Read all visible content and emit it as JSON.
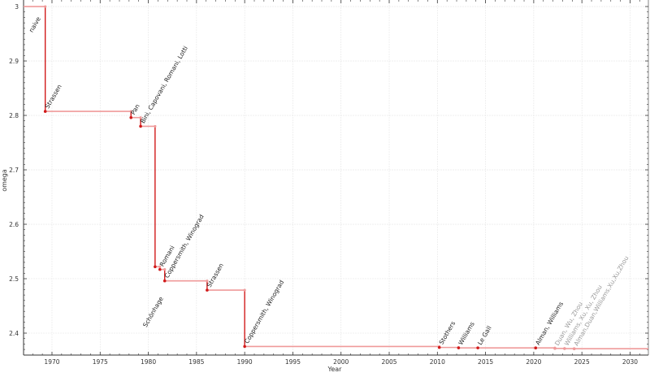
{
  "chart_data": {
    "type": "line",
    "step": true,
    "title": "",
    "xlabel": "Year",
    "ylabel": "omega",
    "xlim": [
      1967.05,
      2031.9
    ],
    "ylim": [
      2.3597,
      3.012
    ],
    "xticks": [
      1970,
      1975,
      1980,
      1985,
      1990,
      1995,
      2000,
      2005,
      2010,
      2015,
      2020,
      2025,
      2030
    ],
    "yticks": [
      2.4,
      2.5,
      2.6,
      2.7,
      2.8,
      2.9,
      3
    ],
    "grid": true,
    "colors": {
      "line": "#d11a1a",
      "line_light": "#ef9a9a",
      "label": "#222222",
      "label_light": "#999999"
    },
    "points": [
      {
        "x": 1967.05,
        "y": 3.0,
        "label": "naive"
      },
      {
        "x": 1969.3,
        "y": 2.8074,
        "label": "Strassen"
      },
      {
        "x": 1978.2,
        "y": 2.796,
        "label": "Pan"
      },
      {
        "x": 1979.2,
        "y": 2.78,
        "label": "Bini, Capovani, Romani, Lotti"
      },
      {
        "x": 1980.7,
        "y": 2.522,
        "label": "Schönhage"
      },
      {
        "x": 1981.2,
        "y": 2.517,
        "label": "Romani"
      },
      {
        "x": 1981.7,
        "y": 2.496,
        "label": "Coppersmith, Winograd"
      },
      {
        "x": 1986.1,
        "y": 2.479,
        "label": "Strassen"
      },
      {
        "x": 1990.0,
        "y": 2.3755,
        "label": "Coppersmith, Winograd"
      },
      {
        "x": 2010.2,
        "y": 2.3737,
        "label": "Stothers"
      },
      {
        "x": 2012.2,
        "y": 2.3729,
        "label": "Williams"
      },
      {
        "x": 2014.2,
        "y": 2.37286,
        "label": "Le Gall"
      },
      {
        "x": 2020.2,
        "y": 2.37285,
        "label": "Alman, Williams"
      },
      {
        "x": 2022.2,
        "y": 2.37188,
        "label": "Duan, Wu, Zhou",
        "tentative": true
      },
      {
        "x": 2023.2,
        "y": 2.37155,
        "label": "Williams, Xu, Xu, Zhou",
        "tentative": true
      },
      {
        "x": 2024.2,
        "y": 2.37134,
        "label": "Alman,Duan,Williams,Xu,Xu,Zhou",
        "tentative": true
      }
    ]
  }
}
